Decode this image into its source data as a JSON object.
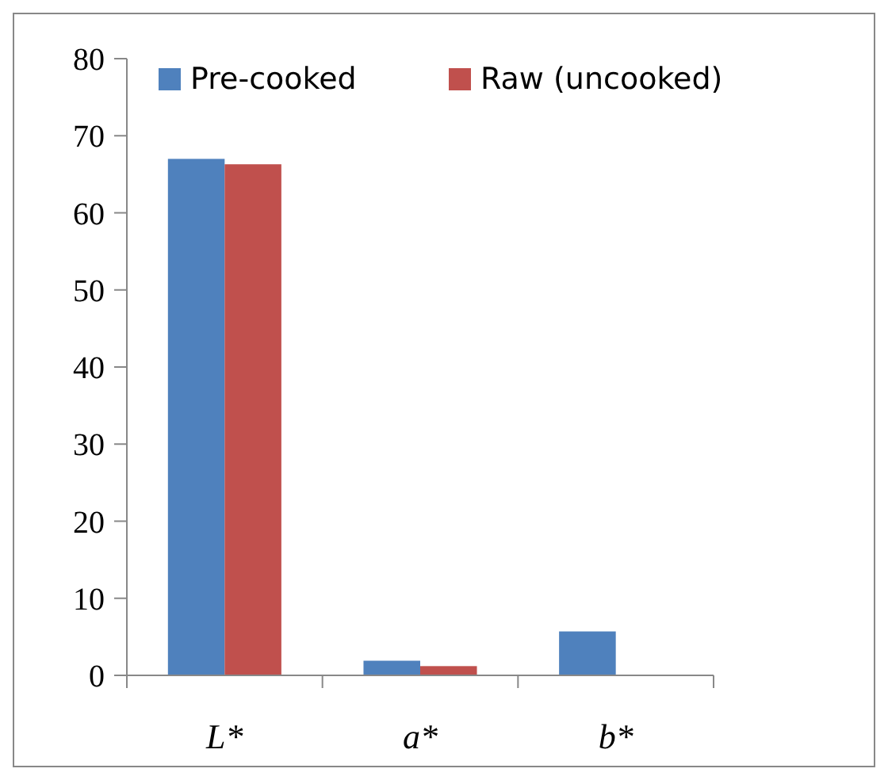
{
  "chart_data": {
    "type": "bar",
    "categories": [
      "L*",
      "a*",
      "b*"
    ],
    "series": [
      {
        "name": "Pre-cooked",
        "color": "#4f81bd",
        "values": [
          67,
          1.9,
          5.7
        ]
      },
      {
        "name": "Raw (uncooked)",
        "color": "#c0504d",
        "values": [
          66.3,
          1.2,
          0
        ]
      }
    ],
    "ylim": [
      0,
      80
    ],
    "yticks": [
      0,
      10,
      20,
      30,
      40,
      50,
      60,
      70,
      80
    ],
    "grid": false,
    "legend": "top"
  }
}
